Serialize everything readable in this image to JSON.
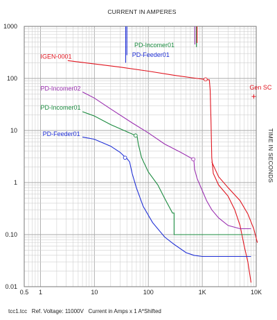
{
  "chart_data": {
    "type": "line",
    "title": "CURRENT IN AMPERES",
    "ylabel": "TIME IN SECONDS",
    "xscale": "log",
    "yscale": "log",
    "xlim": [
      0.5,
      10000
    ],
    "ylim": [
      0.01,
      1000
    ],
    "grid": true,
    "x_tick_labels": [
      {
        "value": 0.5,
        "label": "0.5"
      },
      {
        "value": 1,
        "label": "1"
      },
      {
        "value": 10,
        "label": "10"
      },
      {
        "value": 100,
        "label": "100"
      },
      {
        "value": 1000,
        "label": "1K"
      },
      {
        "value": 10000,
        "label": "10K"
      }
    ],
    "y_tick_labels": [
      {
        "value": 1000,
        "label": "1000"
      },
      {
        "value": 100,
        "label": "100"
      },
      {
        "value": 10,
        "label": "10"
      },
      {
        "value": 1,
        "label": "1"
      },
      {
        "value": 0.1,
        "label": "0.10"
      },
      {
        "value": 0.01,
        "label": "0.01"
      }
    ],
    "footer": "tcc1.tcc   Ref. Voltage: 11000V   Current in Amps x 1 A*Shifted",
    "series": [
      {
        "name": "IGEN-0001",
        "color": "#e0141e",
        "label_at": [
          1.0,
          240
        ],
        "points": [
          [
            3.2,
            220
          ],
          [
            10,
            190
          ],
          [
            30,
            165
          ],
          [
            100,
            138
          ],
          [
            300,
            115
          ],
          [
            800,
            100
          ],
          [
            1200,
            95
          ],
          [
            1350,
            94
          ],
          [
            1400,
            60
          ],
          [
            1450,
            15
          ],
          [
            1500,
            3
          ],
          [
            1600,
            1.5
          ],
          [
            2000,
            0.9
          ],
          [
            3000,
            0.55
          ],
          [
            4000,
            0.3
          ],
          [
            5000,
            0.15
          ],
          [
            6000,
            0.06
          ],
          [
            7000,
            0.03
          ],
          [
            8000,
            0.012
          ]
        ]
      },
      {
        "name": "IGEN-0001 (lower branch)",
        "color": "#e0141e",
        "points": [
          [
            1500,
            2.5
          ],
          [
            2000,
            1.3
          ],
          [
            3000,
            0.8
          ],
          [
            5000,
            0.45
          ],
          [
            7000,
            0.25
          ],
          [
            9000,
            0.13
          ],
          [
            10500,
            0.07
          ]
        ]
      },
      {
        "name": "PD-Incomer02",
        "color": "#9a2fb0",
        "label_at": [
          1.0,
          58
        ],
        "points": [
          [
            6,
            55
          ],
          [
            10,
            42
          ],
          [
            20,
            26
          ],
          [
            50,
            14
          ],
          [
            100,
            9
          ],
          [
            200,
            5.5
          ],
          [
            400,
            3.8
          ],
          [
            680,
            2.8
          ],
          [
            700,
            2.7
          ],
          [
            720,
            1.8
          ],
          [
            800,
            1.2
          ],
          [
            1000,
            0.7
          ],
          [
            1200,
            0.45
          ],
          [
            1500,
            0.3
          ],
          [
            2000,
            0.21
          ],
          [
            3000,
            0.15
          ],
          [
            5000,
            0.13
          ],
          [
            8000,
            0.13
          ]
        ]
      },
      {
        "name": "PD-Incomer01",
        "color": "#1a8a3e",
        "label_at": [
          1.0,
          25
        ],
        "points": [
          [
            6,
            23
          ],
          [
            10,
            19
          ],
          [
            20,
            13
          ],
          [
            40,
            9.5
          ],
          [
            58,
            8
          ],
          [
            62,
            7.6
          ],
          [
            65,
            5.5
          ],
          [
            75,
            3
          ],
          [
            100,
            1.6
          ],
          [
            150,
            0.9
          ],
          [
            200,
            0.5
          ],
          [
            280,
            0.26
          ],
          [
            300,
            0.26
          ],
          [
            300,
            0.1
          ],
          [
            8000,
            0.1
          ]
        ]
      },
      {
        "name": "PD-Feeder01",
        "color": "#1f2fd6",
        "label_at": [
          1.1,
          7.8
        ],
        "points": [
          [
            6,
            7.5
          ],
          [
            10,
            6.8
          ],
          [
            20,
            5
          ],
          [
            30,
            3.8
          ],
          [
            38,
            3
          ],
          [
            40,
            2.9
          ],
          [
            45,
            2.5
          ],
          [
            50,
            1.5
          ],
          [
            60,
            0.8
          ],
          [
            80,
            0.35
          ],
          [
            120,
            0.17
          ],
          [
            200,
            0.09
          ],
          [
            300,
            0.065
          ],
          [
            500,
            0.045
          ],
          [
            700,
            0.04
          ],
          [
            1000,
            0.038
          ],
          [
            8000,
            0.038
          ]
        ]
      },
      {
        "name": "PD-Incomer01 (instantaneous)",
        "color": "#1a8a3e",
        "points": [
          [
            780,
            1000
          ],
          [
            780,
            400
          ]
        ]
      },
      {
        "name": "PD-Feeder01 (instantaneous)",
        "color": "#1f2fd6",
        "points": [
          [
            38,
            1000
          ],
          [
            38,
            200
          ]
        ]
      }
    ],
    "top_labels": [
      {
        "name": "PD-Incomer01",
        "color": "#1a8a3e",
        "at": [
          55,
          400
        ]
      },
      {
        "name": "PD-Feeder01",
        "color": "#1f2fd6",
        "at": [
          50,
          260
        ]
      }
    ],
    "top_stubs": [
      {
        "color": "#1f2fd6",
        "x": 40,
        "y_top": 1000,
        "y_bottom": 280
      },
      {
        "color": "#9a2fb0",
        "x": 730,
        "y_top": 1000,
        "y_bottom": 450
      },
      {
        "color": "#e0141e",
        "x": 800,
        "y_top": 1000,
        "y_bottom": 480
      }
    ],
    "annotations": [
      {
        "text": "Gen SC",
        "color": "#e0141e",
        "x": 9000,
        "y": 45,
        "marker": "plus"
      }
    ],
    "markers": [
      {
        "color": "#e0141e",
        "x": 1150,
        "y": 96
      },
      {
        "color": "#9a2fb0",
        "x": 680,
        "y": 2.8
      },
      {
        "color": "#1a8a3e",
        "x": 58,
        "y": 8
      },
      {
        "color": "#1f2fd6",
        "x": 37,
        "y": 3
      }
    ]
  }
}
